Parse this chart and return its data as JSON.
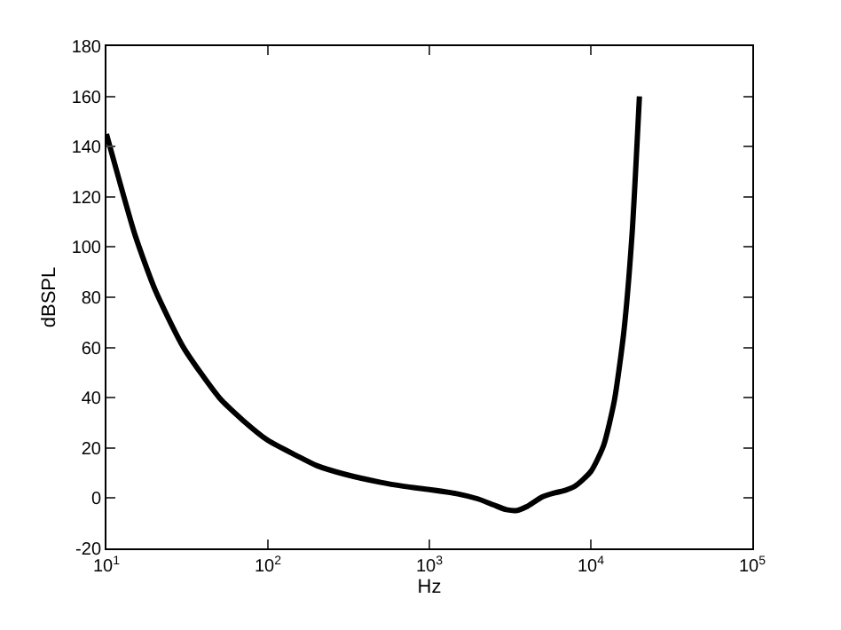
{
  "chart_data": {
    "type": "line",
    "xlabel": "Hz",
    "ylabel": "dBSPL",
    "x": [
      10,
      15,
      20,
      30,
      50,
      70,
      100,
      150,
      200,
      300,
      500,
      700,
      1000,
      1500,
      2000,
      2500,
      3000,
      3500,
      4000,
      5000,
      6000,
      7000,
      8000,
      10000,
      12000,
      14000,
      16000,
      18000,
      20000
    ],
    "series": [
      {
        "color": "#000000",
        "values": [
          145,
          105,
          83,
          60,
          40,
          31,
          23,
          17,
          13,
          9.5,
          6.3,
          4.7,
          3.4,
          1.7,
          -0.3,
          -2.7,
          -4.6,
          -4.9,
          -3.4,
          0.5,
          2.1,
          3.2,
          4.8,
          10.6,
          21,
          39,
          66,
          105,
          160
        ]
      }
    ],
    "log": "x",
    "xlim": [
      10,
      100000
    ],
    "xticks": [
      {
        "value": 10,
        "label": "10$^{1}$"
      },
      {
        "value": 100,
        "label": "10$^{2}$"
      },
      {
        "value": 1000,
        "label": "10$^{3}$"
      },
      {
        "value": 10000,
        "label": "10$^{4}$"
      },
      {
        "value": 100000,
        "label": "10$^{5}$"
      }
    ],
    "ylim": [
      -20,
      180
    ],
    "yticks": [
      -20,
      0,
      20,
      40,
      60,
      80,
      100,
      120,
      140,
      160,
      180
    ],
    "marker": "none",
    "line_style": "solid"
  }
}
